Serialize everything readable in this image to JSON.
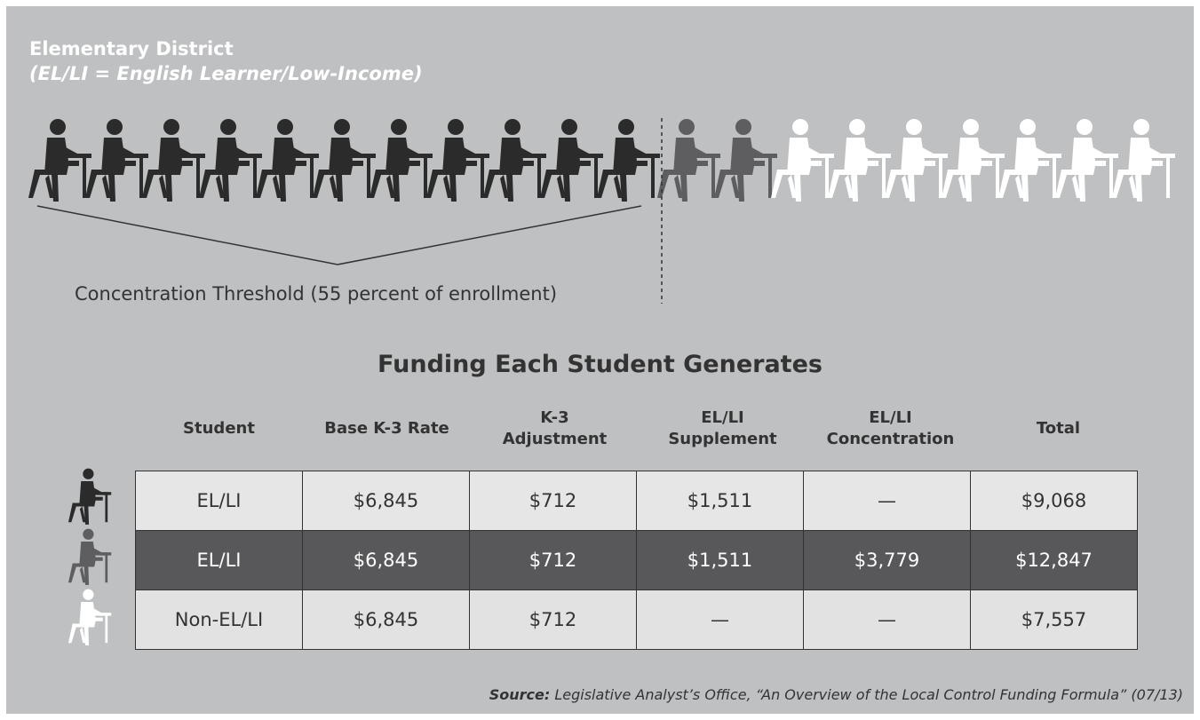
{
  "header": {
    "title": "Elementary District",
    "subtitle": "(EL/LI = English Learner/Low-Income)"
  },
  "threshold_label": "Concentration Threshold (55 percent of enrollment)",
  "table": {
    "title": "Funding Each Student Generates",
    "columns": [
      [
        "Student"
      ],
      [
        "Base K-3 Rate"
      ],
      [
        "K-3",
        "Adjustment"
      ],
      [
        "EL/LI",
        "Supplement"
      ],
      [
        "EL/LI",
        "Concentration"
      ],
      [
        "Total"
      ]
    ],
    "rows": [
      [
        "EL/LI",
        "$6,845",
        "$712",
        "$1,511",
        "—",
        "$9,068"
      ],
      [
        "EL/LI",
        "$6,845",
        "$712",
        "$1,511",
        "$3,779",
        "$12,847"
      ],
      [
        "Non-EL/LI",
        "$6,845",
        "$712",
        "—",
        "—",
        "$7,557"
      ]
    ]
  },
  "source": {
    "label": "Source:",
    "text": "Legislative Analyst’s Office, “An Overview of the Local Control Funding Formula” (07/13)"
  }
}
